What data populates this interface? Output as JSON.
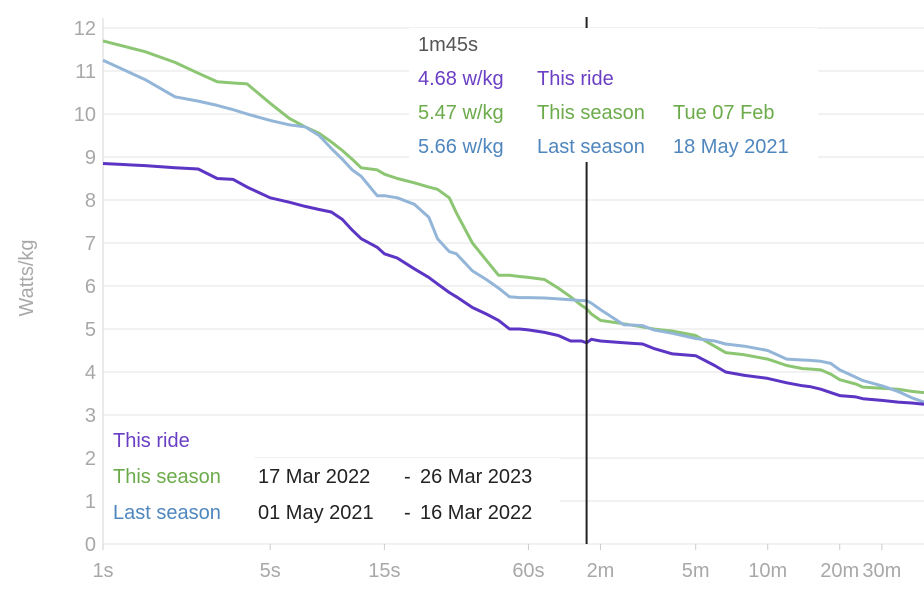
{
  "chart_data": {
    "type": "line",
    "title": "",
    "xlabel": "",
    "ylabel": "Watts/kg",
    "xscale": "log",
    "x_unit": "seconds",
    "xlim": [
      1,
      2700
    ],
    "ylim": [
      0,
      12
    ],
    "yticks": [
      0,
      1,
      2,
      3,
      4,
      5,
      6,
      7,
      8,
      9,
      10,
      11,
      12
    ],
    "xticks": [
      {
        "value": 1,
        "label": "1s"
      },
      {
        "value": 5,
        "label": "5s"
      },
      {
        "value": 15,
        "label": "15s"
      },
      {
        "value": 60,
        "label": "60s"
      },
      {
        "value": 120,
        "label": "2m"
      },
      {
        "value": 300,
        "label": "5m"
      },
      {
        "value": 600,
        "label": "10m"
      },
      {
        "value": 1200,
        "label": "20m"
      },
      {
        "value": 1800,
        "label": "30m"
      }
    ],
    "grid": true,
    "cursor_x": 105,
    "colors": {
      "this_ride": "#6a3fc4",
      "this_season": "#6cab4b",
      "last_season": "#4f86bd"
    },
    "series": [
      {
        "name": "This ride",
        "color": "#5c35c4",
        "x": [
          1,
          1.5,
          2,
          2.5,
          3,
          3.5,
          4,
          5,
          6,
          7,
          8,
          9,
          10,
          11,
          12,
          14,
          15,
          17,
          20,
          23,
          25,
          28,
          30,
          35,
          40,
          45,
          50,
          55,
          60,
          70,
          80,
          90,
          100,
          105,
          110,
          120,
          150,
          180,
          200,
          240,
          300,
          360,
          400,
          480,
          600,
          720,
          840,
          900,
          1000,
          1100,
          1200,
          1400,
          1500,
          1800,
          2100,
          2400,
          2700
        ],
        "y": [
          8.85,
          8.8,
          8.75,
          8.72,
          8.5,
          8.48,
          8.3,
          8.05,
          7.95,
          7.85,
          7.78,
          7.72,
          7.55,
          7.3,
          7.1,
          6.9,
          6.75,
          6.65,
          6.4,
          6.2,
          6.05,
          5.85,
          5.75,
          5.5,
          5.35,
          5.2,
          5.0,
          5.0,
          4.98,
          4.92,
          4.85,
          4.72,
          4.72,
          4.68,
          4.76,
          4.72,
          4.68,
          4.65,
          4.55,
          4.42,
          4.38,
          4.15,
          4.0,
          3.92,
          3.85,
          3.75,
          3.68,
          3.66,
          3.6,
          3.52,
          3.45,
          3.42,
          3.38,
          3.34,
          3.3,
          3.28,
          3.25
        ]
      },
      {
        "name": "This season",
        "color": "#8cc673",
        "x": [
          1,
          1.5,
          2,
          2.5,
          3,
          3.5,
          4,
          5,
          6,
          7,
          8,
          9,
          10,
          11,
          12,
          14,
          15,
          17,
          20,
          23,
          25,
          28,
          30,
          35,
          40,
          45,
          50,
          55,
          60,
          70,
          80,
          90,
          100,
          105,
          110,
          120,
          150,
          180,
          200,
          240,
          300,
          360,
          400,
          480,
          600,
          720,
          840,
          900,
          1000,
          1100,
          1200,
          1400,
          1500,
          1800,
          2100,
          2400,
          2700
        ],
        "y": [
          11.7,
          11.45,
          11.2,
          10.95,
          10.75,
          10.72,
          10.7,
          10.25,
          9.9,
          9.7,
          9.55,
          9.35,
          9.15,
          8.95,
          8.75,
          8.7,
          8.6,
          8.5,
          8.4,
          8.3,
          8.25,
          8.05,
          7.7,
          7.0,
          6.6,
          6.25,
          6.25,
          6.22,
          6.2,
          6.15,
          5.95,
          5.75,
          5.55,
          5.47,
          5.35,
          5.2,
          5.12,
          5.05,
          5.0,
          4.95,
          4.85,
          4.6,
          4.45,
          4.4,
          4.3,
          4.15,
          4.08,
          4.07,
          4.05,
          3.95,
          3.82,
          3.72,
          3.65,
          3.62,
          3.6,
          3.55,
          3.52
        ]
      },
      {
        "name": "Last season",
        "color": "#93b6d8",
        "x": [
          1,
          1.5,
          2,
          2.5,
          3,
          3.5,
          4,
          5,
          6,
          7,
          8,
          9,
          10,
          11,
          12,
          14,
          15,
          17,
          20,
          23,
          25,
          28,
          30,
          35,
          40,
          45,
          50,
          55,
          60,
          70,
          80,
          90,
          100,
          105,
          110,
          120,
          150,
          180,
          200,
          240,
          300,
          360,
          400,
          480,
          600,
          720,
          840,
          900,
          1000,
          1100,
          1200,
          1400,
          1500,
          1800,
          2100,
          2400,
          2700
        ],
        "y": [
          11.25,
          10.8,
          10.4,
          10.3,
          10.2,
          10.1,
          10.0,
          9.85,
          9.75,
          9.7,
          9.5,
          9.2,
          8.95,
          8.7,
          8.55,
          8.1,
          8.1,
          8.05,
          7.9,
          7.6,
          7.1,
          6.8,
          6.75,
          6.35,
          6.15,
          5.95,
          5.75,
          5.73,
          5.73,
          5.72,
          5.7,
          5.68,
          5.66,
          5.66,
          5.6,
          5.45,
          5.1,
          5.08,
          4.98,
          4.9,
          4.78,
          4.72,
          4.65,
          4.6,
          4.5,
          4.3,
          4.28,
          4.27,
          4.25,
          4.2,
          4.05,
          3.88,
          3.8,
          3.68,
          3.55,
          3.4,
          3.3
        ]
      }
    ]
  },
  "tooltip": {
    "time": "1m45s",
    "rows": [
      {
        "value": "4.68 w/kg",
        "label": "This ride",
        "date": "",
        "color": "#6a3fc4"
      },
      {
        "value": "5.47 w/kg",
        "label": "This season",
        "date": "Tue 07 Feb",
        "color": "#6cab4b"
      },
      {
        "value": "5.66 w/kg",
        "label": "Last season",
        "date": "18 May 2021",
        "color": "#4f86bd"
      }
    ]
  },
  "legend": [
    {
      "label": "This ride",
      "from": "",
      "sep": "",
      "to": "",
      "color": "#6a3fc4"
    },
    {
      "label": "This season",
      "from": "17 Mar 2022",
      "sep": "-",
      "to": "26 Mar 2023",
      "color": "#6cab4b"
    },
    {
      "label": "Last season",
      "from": "01 May 2021",
      "sep": "-",
      "to": "16 Mar 2022",
      "color": "#4f86bd"
    }
  ]
}
